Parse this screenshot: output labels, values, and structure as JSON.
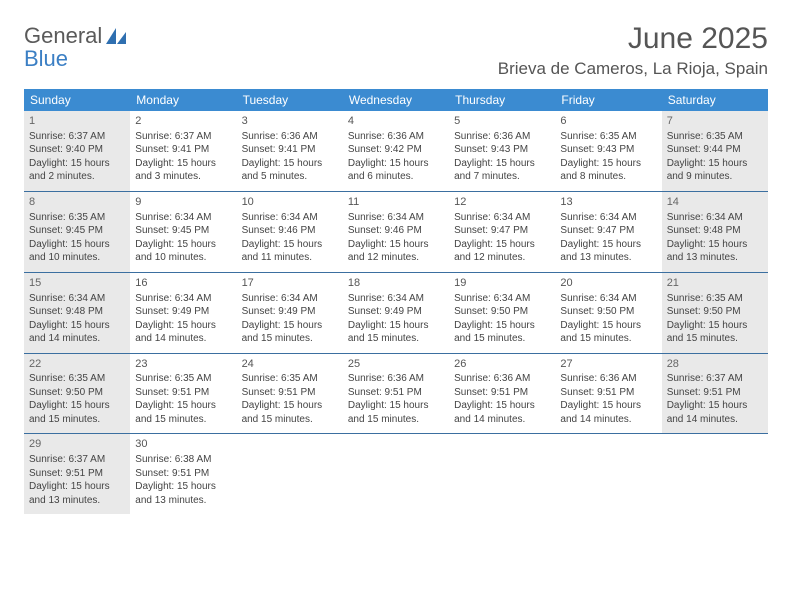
{
  "logo": {
    "line1": "General",
    "line2": "Blue"
  },
  "title": "June 2025",
  "location": "Brieva de Cameros, La Rioja, Spain",
  "colors": {
    "header_bar": "#3b8bd1",
    "week_rule": "#3b6fa0",
    "shaded_bg": "#e9e9e9",
    "text": "#444444",
    "title_text": "#555555"
  },
  "dow": [
    "Sunday",
    "Monday",
    "Tuesday",
    "Wednesday",
    "Thursday",
    "Friday",
    "Saturday"
  ],
  "weeks": [
    [
      {
        "n": "1",
        "shaded": true,
        "sr": "6:37 AM",
        "ss": "9:40 PM",
        "dl": "15 hours and 2 minutes."
      },
      {
        "n": "2",
        "sr": "6:37 AM",
        "ss": "9:41 PM",
        "dl": "15 hours and 3 minutes."
      },
      {
        "n": "3",
        "sr": "6:36 AM",
        "ss": "9:41 PM",
        "dl": "15 hours and 5 minutes."
      },
      {
        "n": "4",
        "sr": "6:36 AM",
        "ss": "9:42 PM",
        "dl": "15 hours and 6 minutes."
      },
      {
        "n": "5",
        "sr": "6:36 AM",
        "ss": "9:43 PM",
        "dl": "15 hours and 7 minutes."
      },
      {
        "n": "6",
        "sr": "6:35 AM",
        "ss": "9:43 PM",
        "dl": "15 hours and 8 minutes."
      },
      {
        "n": "7",
        "shaded": true,
        "sr": "6:35 AM",
        "ss": "9:44 PM",
        "dl": "15 hours and 9 minutes."
      }
    ],
    [
      {
        "n": "8",
        "shaded": true,
        "sr": "6:35 AM",
        "ss": "9:45 PM",
        "dl": "15 hours and 10 minutes."
      },
      {
        "n": "9",
        "sr": "6:34 AM",
        "ss": "9:45 PM",
        "dl": "15 hours and 10 minutes."
      },
      {
        "n": "10",
        "sr": "6:34 AM",
        "ss": "9:46 PM",
        "dl": "15 hours and 11 minutes."
      },
      {
        "n": "11",
        "sr": "6:34 AM",
        "ss": "9:46 PM",
        "dl": "15 hours and 12 minutes."
      },
      {
        "n": "12",
        "sr": "6:34 AM",
        "ss": "9:47 PM",
        "dl": "15 hours and 12 minutes."
      },
      {
        "n": "13",
        "sr": "6:34 AM",
        "ss": "9:47 PM",
        "dl": "15 hours and 13 minutes."
      },
      {
        "n": "14",
        "shaded": true,
        "sr": "6:34 AM",
        "ss": "9:48 PM",
        "dl": "15 hours and 13 minutes."
      }
    ],
    [
      {
        "n": "15",
        "shaded": true,
        "sr": "6:34 AM",
        "ss": "9:48 PM",
        "dl": "15 hours and 14 minutes."
      },
      {
        "n": "16",
        "sr": "6:34 AM",
        "ss": "9:49 PM",
        "dl": "15 hours and 14 minutes."
      },
      {
        "n": "17",
        "sr": "6:34 AM",
        "ss": "9:49 PM",
        "dl": "15 hours and 15 minutes."
      },
      {
        "n": "18",
        "sr": "6:34 AM",
        "ss": "9:49 PM",
        "dl": "15 hours and 15 minutes."
      },
      {
        "n": "19",
        "sr": "6:34 AM",
        "ss": "9:50 PM",
        "dl": "15 hours and 15 minutes."
      },
      {
        "n": "20",
        "sr": "6:34 AM",
        "ss": "9:50 PM",
        "dl": "15 hours and 15 minutes."
      },
      {
        "n": "21",
        "shaded": true,
        "sr": "6:35 AM",
        "ss": "9:50 PM",
        "dl": "15 hours and 15 minutes."
      }
    ],
    [
      {
        "n": "22",
        "shaded": true,
        "sr": "6:35 AM",
        "ss": "9:50 PM",
        "dl": "15 hours and 15 minutes."
      },
      {
        "n": "23",
        "sr": "6:35 AM",
        "ss": "9:51 PM",
        "dl": "15 hours and 15 minutes."
      },
      {
        "n": "24",
        "sr": "6:35 AM",
        "ss": "9:51 PM",
        "dl": "15 hours and 15 minutes."
      },
      {
        "n": "25",
        "sr": "6:36 AM",
        "ss": "9:51 PM",
        "dl": "15 hours and 15 minutes."
      },
      {
        "n": "26",
        "sr": "6:36 AM",
        "ss": "9:51 PM",
        "dl": "15 hours and 14 minutes."
      },
      {
        "n": "27",
        "sr": "6:36 AM",
        "ss": "9:51 PM",
        "dl": "15 hours and 14 minutes."
      },
      {
        "n": "28",
        "shaded": true,
        "sr": "6:37 AM",
        "ss": "9:51 PM",
        "dl": "15 hours and 14 minutes."
      }
    ],
    [
      {
        "n": "29",
        "shaded": true,
        "sr": "6:37 AM",
        "ss": "9:51 PM",
        "dl": "15 hours and 13 minutes."
      },
      {
        "n": "30",
        "sr": "6:38 AM",
        "ss": "9:51 PM",
        "dl": "15 hours and 13 minutes."
      },
      null,
      null,
      null,
      null,
      null
    ]
  ],
  "labels": {
    "sunrise": "Sunrise:",
    "sunset": "Sunset:",
    "daylight": "Daylight:"
  }
}
